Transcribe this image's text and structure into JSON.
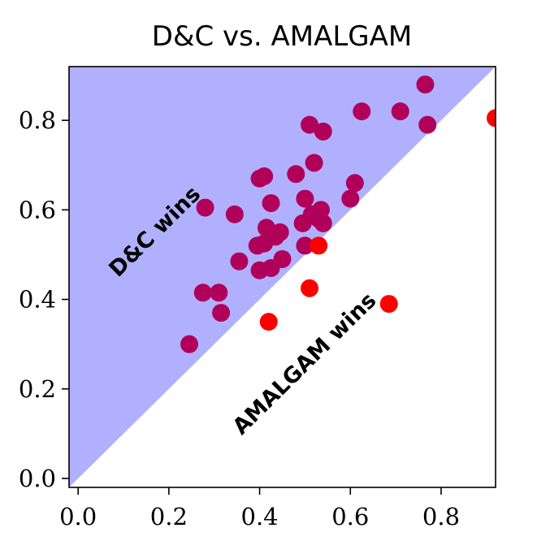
{
  "chart_data": {
    "type": "scatter",
    "title": "D&C vs. AMALGAM",
    "xlabel": "",
    "ylabel": "",
    "xlim": [
      -0.02,
      0.92
    ],
    "ylim": [
      -0.02,
      0.92
    ],
    "x_ticks": [
      0.0,
      0.2,
      0.4,
      0.6,
      0.8
    ],
    "x_tick_labels": [
      "0.0",
      "0.2",
      "0.4",
      "0.6",
      "0.8"
    ],
    "y_ticks": [
      0.0,
      0.2,
      0.4,
      0.6,
      0.8
    ],
    "y_tick_labels": [
      "0.0",
      "0.2",
      "0.4",
      "0.6",
      "0.8"
    ],
    "grid": false,
    "regions": [
      {
        "label": "D&C wins",
        "color": "#b0b0ff",
        "side": "above-diagonal"
      },
      {
        "label": "AMALGAM wins",
        "color": "#ffffff",
        "side": "below-diagonal"
      }
    ],
    "point_colors": {
      "above_diagonal": "#b0005a",
      "below_diagonal": "#ff0000"
    },
    "points": [
      {
        "x": 0.245,
        "y": 0.3
      },
      {
        "x": 0.275,
        "y": 0.415
      },
      {
        "x": 0.28,
        "y": 0.605
      },
      {
        "x": 0.31,
        "y": 0.415
      },
      {
        "x": 0.315,
        "y": 0.37
      },
      {
        "x": 0.345,
        "y": 0.59
      },
      {
        "x": 0.355,
        "y": 0.485
      },
      {
        "x": 0.395,
        "y": 0.52
      },
      {
        "x": 0.4,
        "y": 0.465
      },
      {
        "x": 0.4,
        "y": 0.67
      },
      {
        "x": 0.41,
        "y": 0.675
      },
      {
        "x": 0.41,
        "y": 0.525
      },
      {
        "x": 0.415,
        "y": 0.56
      },
      {
        "x": 0.42,
        "y": 0.35
      },
      {
        "x": 0.425,
        "y": 0.47
      },
      {
        "x": 0.425,
        "y": 0.615
      },
      {
        "x": 0.435,
        "y": 0.54
      },
      {
        "x": 0.445,
        "y": 0.55
      },
      {
        "x": 0.45,
        "y": 0.49
      },
      {
        "x": 0.48,
        "y": 0.68
      },
      {
        "x": 0.495,
        "y": 0.57
      },
      {
        "x": 0.5,
        "y": 0.52
      },
      {
        "x": 0.5,
        "y": 0.625
      },
      {
        "x": 0.51,
        "y": 0.79
      },
      {
        "x": 0.51,
        "y": 0.425
      },
      {
        "x": 0.515,
        "y": 0.59
      },
      {
        "x": 0.52,
        "y": 0.705
      },
      {
        "x": 0.53,
        "y": 0.52
      },
      {
        "x": 0.53,
        "y": 0.58
      },
      {
        "x": 0.535,
        "y": 0.6
      },
      {
        "x": 0.54,
        "y": 0.775
      },
      {
        "x": 0.54,
        "y": 0.57
      },
      {
        "x": 0.6,
        "y": 0.625
      },
      {
        "x": 0.61,
        "y": 0.66
      },
      {
        "x": 0.625,
        "y": 0.82
      },
      {
        "x": 0.685,
        "y": 0.39
      },
      {
        "x": 0.71,
        "y": 0.82
      },
      {
        "x": 0.765,
        "y": 0.88
      },
      {
        "x": 0.77,
        "y": 0.79
      },
      {
        "x": 0.92,
        "y": 0.805
      }
    ]
  }
}
